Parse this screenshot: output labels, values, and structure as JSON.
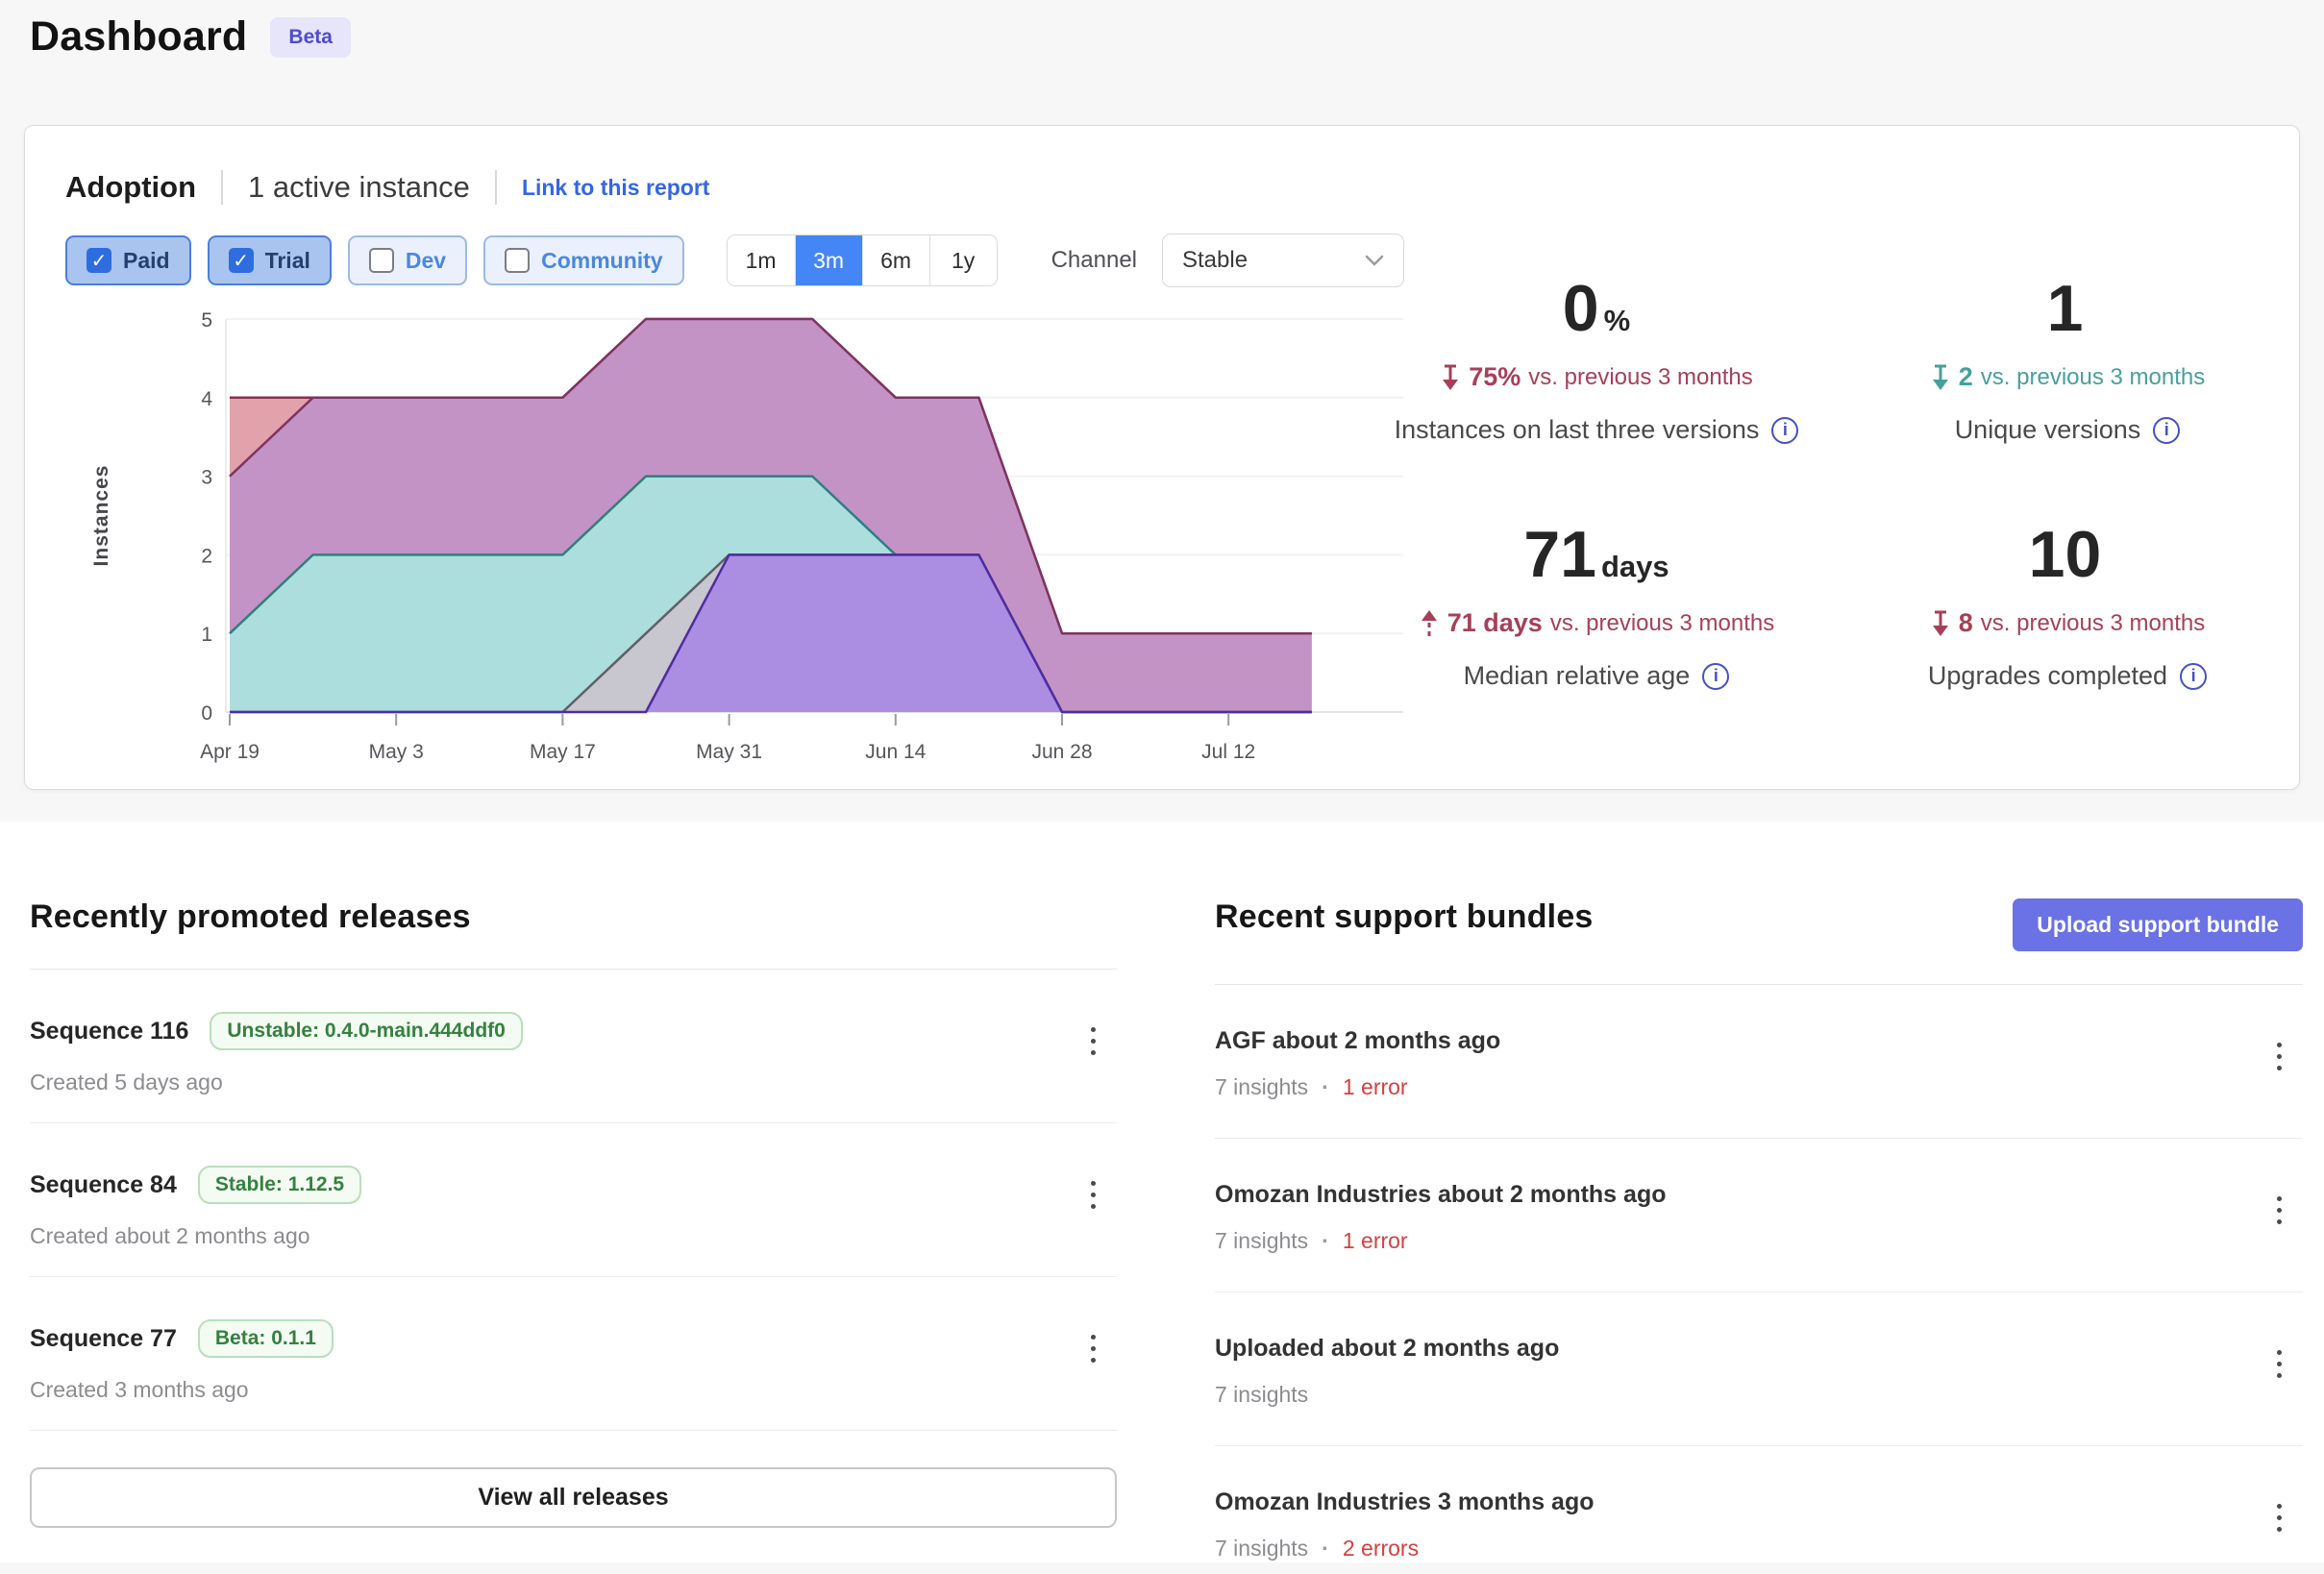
{
  "page": {
    "title": "Dashboard",
    "beta_badge": "Beta"
  },
  "colors": {
    "accent_blue": "#4486f5",
    "link_blue": "#3566e3",
    "indigo_button": "#6a72e5",
    "negative_red": "#a64059",
    "positive_teal": "#47a09b",
    "error_red": "#d6403f",
    "badge_green": "#35813f"
  },
  "adoption": {
    "title": "Adoption",
    "active_instances": "1 active instance",
    "report_link": "Link to this report",
    "filters": [
      {
        "label": "Paid",
        "checked": true
      },
      {
        "label": "Trial",
        "checked": true
      },
      {
        "label": "Dev",
        "checked": false
      },
      {
        "label": "Community",
        "checked": false
      }
    ],
    "time_ranges": [
      {
        "label": "1m",
        "active": false
      },
      {
        "label": "3m",
        "active": true
      },
      {
        "label": "6m",
        "active": false
      },
      {
        "label": "1y",
        "active": false
      }
    ],
    "channel_label": "Channel",
    "channel_value": "Stable",
    "stats": [
      {
        "value": "0",
        "unit": "%",
        "delta": "75%",
        "delta_suffix": "vs. previous 3 months",
        "trend": "down-bad",
        "label": "Instances on last three versions"
      },
      {
        "value": "1",
        "unit": "",
        "delta": "2",
        "delta_suffix": "vs. previous 3 months",
        "trend": "down-good",
        "label": "Unique versions"
      },
      {
        "value": "71",
        "unit": "days",
        "delta": "71 days",
        "delta_suffix": "vs. previous 3 months",
        "trend": "up-bad",
        "label": "Median relative age"
      },
      {
        "value": "10",
        "unit": "",
        "delta": "8",
        "delta_suffix": "vs. previous 3 months",
        "trend": "down-bad",
        "label": "Upgrades completed"
      }
    ]
  },
  "chart_data": {
    "type": "area",
    "title": "Adoption instances by version over time",
    "ylabel": "Instances",
    "ylim": [
      0,
      5
    ],
    "grid": true,
    "legend": "none",
    "x": [
      "Apr 19",
      "Apr 26",
      "May 3",
      "May 10",
      "May 17",
      "May 24",
      "May 31",
      "Jun 7",
      "Jun 14",
      "Jun 21",
      "Jun 28",
      "Jul 5",
      "Jul 12",
      "Jul 19"
    ],
    "x_tick_labels": [
      "Apr 19",
      "May 3",
      "May 17",
      "May 31",
      "Jun 14",
      "Jun 28",
      "Jul 12"
    ],
    "x_tick_indices": [
      0,
      2,
      4,
      6,
      8,
      10,
      12
    ],
    "y_ticks": [
      0,
      1,
      2,
      3,
      4,
      5
    ],
    "series": [
      {
        "name": "version-maroon",
        "fill": "#e2a2ab",
        "stroke": "#8e2d50",
        "values": [
          4,
          4,
          4,
          4,
          4,
          5,
          5,
          5,
          4,
          4,
          1,
          1,
          1,
          1
        ]
      },
      {
        "name": "version-magenta",
        "fill": "#c493c6",
        "stroke": "#7e3360",
        "values": [
          3,
          4,
          4,
          4,
          4,
          5,
          5,
          5,
          4,
          4,
          1,
          1,
          1,
          1
        ]
      },
      {
        "name": "version-teal",
        "fill": "#abdedd",
        "stroke": "#2e7f7e",
        "values": [
          1,
          2,
          2,
          2,
          2,
          3,
          3,
          3,
          2,
          2,
          0,
          0,
          0,
          0
        ]
      },
      {
        "name": "version-gray",
        "fill": "#c8c6ce",
        "stroke": "#605e67",
        "values": [
          0,
          0,
          0,
          0,
          0,
          1,
          2,
          2,
          2,
          2,
          0,
          0,
          0,
          0
        ]
      },
      {
        "name": "version-purple",
        "fill": "#ab8de2",
        "stroke": "#4e2da0",
        "values": [
          0,
          0,
          0,
          0,
          0,
          0,
          2,
          2,
          2,
          2,
          0,
          0,
          0,
          0
        ]
      }
    ]
  },
  "releases": {
    "heading": "Recently promoted releases",
    "items": [
      {
        "title": "Sequence 116",
        "badge": "Unstable: 0.4.0-main.444ddf0",
        "created": "Created 5 days ago"
      },
      {
        "title": "Sequence 84",
        "badge": "Stable: 1.12.5",
        "created": "Created about 2 months ago"
      },
      {
        "title": "Sequence 77",
        "badge": "Beta: 0.1.1",
        "created": "Created 3 months ago"
      }
    ],
    "view_all_label": "View all releases"
  },
  "support_bundles": {
    "heading": "Recent support bundles",
    "upload_button_label": "Upload support bundle",
    "items": [
      {
        "title": "AGF about 2 months ago",
        "insights": "7 insights",
        "errors": "1 error"
      },
      {
        "title": "Omozan Industries about 2 months ago",
        "insights": "7 insights",
        "errors": "1 error"
      },
      {
        "title": "Uploaded about 2 months ago",
        "insights": "7 insights",
        "errors": ""
      },
      {
        "title": "Omozan Industries 3 months ago",
        "insights": "7 insights",
        "errors": "2 errors"
      }
    ]
  }
}
